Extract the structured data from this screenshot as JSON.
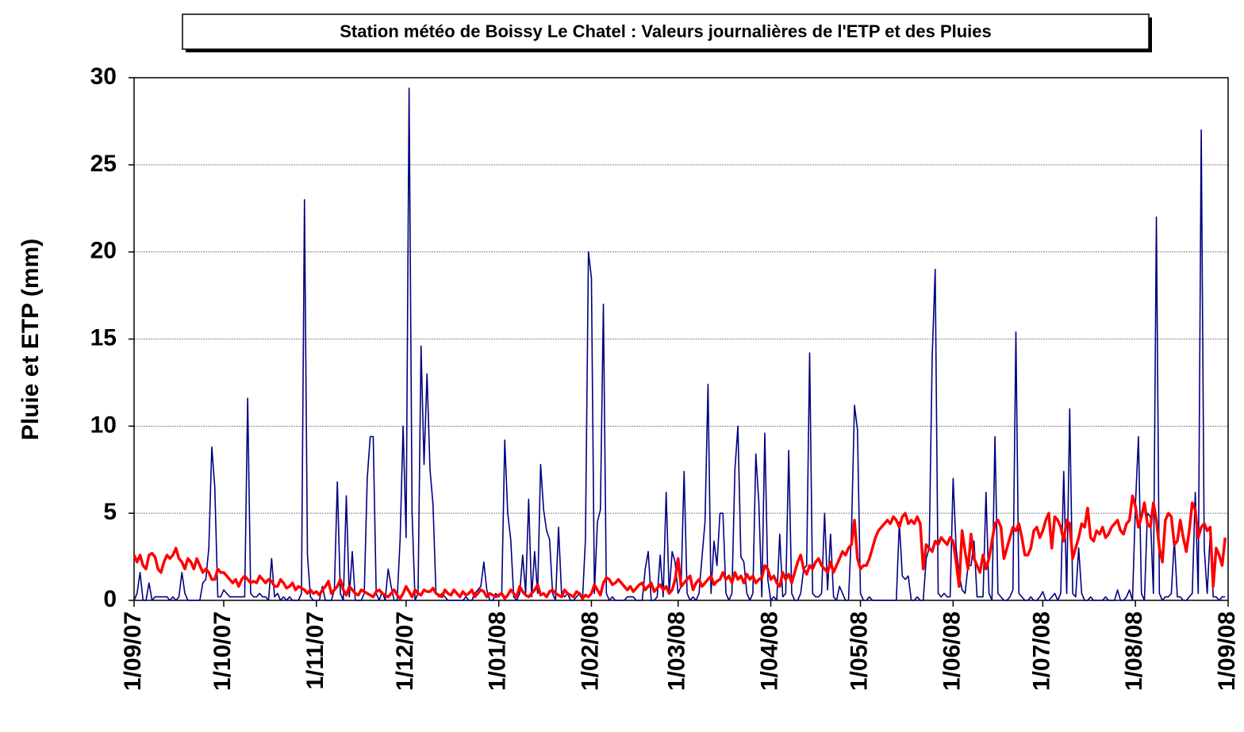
{
  "chart_data": {
    "type": "line",
    "title": "Station météo de Boissy Le Chatel : Valeurs journalières de l'ETP et des Pluies",
    "y_label": "Pluie et ETP (mm)",
    "xlim": [
      0,
      366
    ],
    "xticks": [
      {
        "value": 0,
        "label": "1/09/07"
      },
      {
        "value": 30,
        "label": "1/10/07"
      },
      {
        "value": 61,
        "label": "1/11/07"
      },
      {
        "value": 91,
        "label": "1/12/07"
      },
      {
        "value": 122,
        "label": "1/01/08"
      },
      {
        "value": 153,
        "label": "1/02/08"
      },
      {
        "value": 182,
        "label": "1/03/08"
      },
      {
        "value": 213,
        "label": "1/04/08"
      },
      {
        "value": 243,
        "label": "1/05/08"
      },
      {
        "value": 274,
        "label": "1/06/08"
      },
      {
        "value": 304,
        "label": "1/07/08"
      },
      {
        "value": 335,
        "label": "1/08/08"
      },
      {
        "value": 366,
        "label": "1/09/08"
      }
    ],
    "ylim": [
      0,
      30
    ],
    "yticks": [
      0,
      5,
      10,
      15,
      20,
      25,
      30
    ],
    "grid": true,
    "series": [
      {
        "color": "#000080",
        "line_width": 1.6,
        "values": [
          0,
          0.4,
          1.6,
          0,
          0,
          1,
          0,
          0.2,
          0.2,
          0.2,
          0.2,
          0.2,
          0,
          0.2,
          0,
          0.2,
          1.6,
          0.4,
          0,
          0,
          0,
          0,
          0,
          1,
          1.2,
          3,
          8.8,
          6.5,
          0.2,
          0.2,
          0.6,
          0.4,
          0.2,
          0.2,
          0.2,
          0.2,
          0.2,
          0.2,
          11.6,
          0.4,
          0.2,
          0.2,
          0.4,
          0.2,
          0.2,
          0,
          2.4,
          0.2,
          0.4,
          0,
          0.2,
          0,
          0.2,
          0,
          0,
          0,
          0.4,
          23,
          2.6,
          0.2,
          0,
          0,
          0,
          0.8,
          0,
          0,
          0,
          0.6,
          6.8,
          0.4,
          0,
          6,
          0.2,
          2.8,
          0,
          0,
          0,
          0.4,
          7,
          9.4,
          9.4,
          0.4,
          0,
          0.5,
          0,
          1.8,
          0.8,
          0,
          0,
          3.5,
          10,
          3.6,
          29.4,
          5,
          0,
          0.4,
          14.6,
          7.8,
          13,
          7.5,
          5.5,
          0.4,
          0.2,
          0.4,
          0.2,
          0,
          0,
          0,
          0,
          0,
          0,
          0.2,
          0,
          0,
          0.4,
          0.6,
          0.8,
          2.2,
          0.6,
          0,
          0,
          0.4,
          0.2,
          0.4,
          9.2,
          5,
          3.5,
          0.2,
          0,
          0.4,
          2.6,
          0.4,
          5.8,
          0.2,
          2.8,
          0.4,
          7.8,
          5.2,
          4,
          3.5,
          0.4,
          0,
          4.2,
          0.4,
          0.2,
          0.4,
          0,
          0,
          0.2,
          0.4,
          0,
          3.5,
          20,
          18.5,
          0.4,
          4.5,
          5.2,
          17,
          0.4,
          0,
          0.2,
          0,
          0,
          0,
          0,
          0.2,
          0.2,
          0.2,
          0,
          0,
          0,
          1.8,
          2.8,
          0,
          0,
          0.2,
          2.6,
          0.2,
          6.2,
          0.4,
          2.8,
          2.2,
          0.4,
          0.8,
          7.4,
          0.4,
          0,
          0.2,
          0,
          0.4,
          2.5,
          4.5,
          12.4,
          0.4,
          3.4,
          2,
          5,
          5,
          0.4,
          0,
          0.4,
          7.5,
          10,
          2.5,
          2.2,
          0.4,
          0,
          0.4,
          8.4,
          5.6,
          0.2,
          9.6,
          1.2,
          0,
          0.2,
          0,
          3.8,
          0.2,
          0.4,
          8.6,
          0.4,
          0,
          0,
          0.4,
          1.8,
          2,
          14.2,
          0.4,
          0.2,
          0.2,
          0.4,
          5,
          0.6,
          3.8,
          0.2,
          0,
          0.8,
          0.4,
          0,
          0,
          4,
          11.2,
          9.8,
          0.4,
          0,
          0,
          0.2,
          0,
          0,
          0,
          0,
          0,
          0,
          0,
          0,
          0,
          4.5,
          1.4,
          1.2,
          1.4,
          0,
          0,
          0.2,
          0,
          0,
          2.4,
          3,
          14,
          19,
          0.4,
          0.2,
          0.4,
          0.2,
          0.2,
          7,
          3,
          1.5,
          0.6,
          0.4,
          2,
          2,
          3.4,
          0.2,
          0.2,
          0.2,
          6.2,
          0.4,
          0,
          9.4,
          0.4,
          0.2,
          0,
          0,
          0.2,
          0.6,
          15.4,
          0.4,
          0.2,
          0,
          0,
          0.2,
          0,
          0,
          0.2,
          0.5,
          0,
          0,
          0.2,
          0.4,
          0,
          0.4,
          7.4,
          0.4,
          11,
          0.4,
          0.2,
          3,
          0.4,
          0,
          0,
          0.2,
          0,
          0,
          0,
          0,
          0.2,
          0,
          0,
          0,
          0.6,
          0,
          0,
          0.2,
          0.6,
          0,
          5.5,
          9.4,
          0.4,
          0,
          5,
          4.8,
          0.4,
          22,
          0.4,
          0,
          0.2,
          0.2,
          0.4,
          3.5,
          0.2,
          0.2,
          0,
          0,
          0.2,
          0.4,
          6.2,
          0.4,
          27,
          3,
          0.4,
          3.8,
          0.2,
          0.2,
          0,
          0.2,
          0.2
        ]
      },
      {
        "color": "#ff0000",
        "line_width": 3.5,
        "values": [
          2.6,
          2.2,
          2.6,
          2,
          1.8,
          2.6,
          2.7,
          2.5,
          1.8,
          1.6,
          2.2,
          2.6,
          2.4,
          2.6,
          3,
          2.4,
          2.2,
          1.8,
          2.4,
          2.2,
          1.8,
          2.4,
          2,
          1.6,
          1.8,
          1.6,
          1.2,
          1.2,
          1.8,
          1.6,
          1.6,
          1.4,
          1.2,
          1,
          1.2,
          0.8,
          1.2,
          1.4,
          1.2,
          1,
          1.1,
          1,
          1.4,
          1.2,
          1,
          1.2,
          1.1,
          0.8,
          0.8,
          1.2,
          1,
          0.7,
          0.8,
          1,
          0.6,
          0.8,
          0.7,
          0.6,
          0.4,
          0.6,
          0.4,
          0.5,
          0.3,
          0.6,
          0.8,
          1.1,
          0.4,
          0.6,
          0.8,
          1.2,
          0.6,
          0.3,
          0.8,
          0.6,
          0.4,
          0.3,
          0.6,
          0.5,
          0.4,
          0.3,
          0.2,
          0.5,
          0.6,
          0.4,
          0.3,
          0.2,
          0.4,
          0.6,
          0.3,
          0.1,
          0.4,
          0.8,
          0.5,
          0.2,
          0.6,
          0.4,
          0.3,
          0.6,
          0.5,
          0.5,
          0.7,
          0.4,
          0.3,
          0.2,
          0.6,
          0.4,
          0.3,
          0.6,
          0.4,
          0.2,
          0.5,
          0.3,
          0.4,
          0.6,
          0.2,
          0.4,
          0.6,
          0.5,
          0.2,
          0.4,
          0.3,
          0.2,
          0.3,
          0.4,
          0.1,
          0.3,
          0.6,
          0.4,
          0.2,
          0.8,
          0.5,
          0.3,
          0.2,
          0.4,
          0.6,
          0.9,
          0.3,
          0.4,
          0.2,
          0.5,
          0.6,
          0.4,
          0.3,
          0.2,
          0.6,
          0.4,
          0.3,
          0.2,
          0.5,
          0.4,
          0.1,
          0.3,
          0.2,
          0.4,
          0.9,
          0.6,
          0.3,
          1,
          1.3,
          1.2,
          0.9,
          1,
          1.2,
          1,
          0.8,
          0.6,
          0.8,
          0.5,
          0.7,
          0.9,
          1,
          0.6,
          0.8,
          1,
          0.5,
          0.7,
          0.9,
          0.6,
          0.8,
          0.4,
          0.6,
          1.2,
          2.4,
          0.8,
          1,
          1.2,
          1.4,
          0.6,
          1,
          1.2,
          0.8,
          1,
          1.2,
          1.4,
          0.9,
          1.1,
          1.2,
          1.6,
          1.2,
          1.4,
          1,
          1.6,
          1.2,
          1.4,
          1,
          1.5,
          1.2,
          1.4,
          1,
          1.2,
          1.3,
          2,
          1.8,
          1.2,
          1.4,
          1,
          0.8,
          1.6,
          1.2,
          1.5,
          1,
          1.6,
          2.2,
          2.6,
          1.8,
          1.5,
          2,
          1.8,
          2.2,
          2.4,
          2,
          1.8,
          1.6,
          2.2,
          1.6,
          2,
          2.4,
          2.8,
          2.6,
          3,
          3.2,
          4.6,
          2.4,
          1.8,
          2,
          2,
          2.4,
          3,
          3.6,
          4,
          4.2,
          4.4,
          4.6,
          4.4,
          4.8,
          4.6,
          4.2,
          4.8,
          5,
          4.4,
          4.6,
          4.4,
          4.8,
          4.4,
          1.8,
          3.2,
          3,
          2.8,
          3.4,
          3.2,
          3.6,
          3.4,
          3.2,
          3.6,
          3.4,
          2.2,
          0.8,
          4,
          2.8,
          1.8,
          3.8,
          2.4,
          2,
          1.6,
          2.6,
          1.8,
          2.4,
          3.4,
          4.4,
          4.6,
          4.2,
          2.4,
          3,
          3.6,
          4.2,
          4,
          4.4,
          3.6,
          2.6,
          2.6,
          3,
          4,
          4.2,
          3.6,
          4,
          4.6,
          5,
          3,
          4.8,
          4.6,
          4.2,
          3.4,
          4.6,
          4.4,
          2.4,
          3,
          3.6,
          4.4,
          4.2,
          5.3,
          3.6,
          3.4,
          4,
          3.8,
          4.2,
          3.6,
          3.8,
          4.2,
          4.4,
          4.6,
          4,
          3.8,
          4.4,
          4.6,
          6,
          5.4,
          4.2,
          4.8,
          5.6,
          4.4,
          4.2,
          5.6,
          4.6,
          3,
          2.2,
          4.6,
          5,
          4.8,
          3.2,
          3.4,
          4.6,
          3.6,
          2.8,
          4,
          5.6,
          5.2,
          3.6,
          4.2,
          4.4,
          4,
          4.2,
          0.8,
          3,
          2.6,
          2,
          3.6
        ]
      }
    ]
  }
}
